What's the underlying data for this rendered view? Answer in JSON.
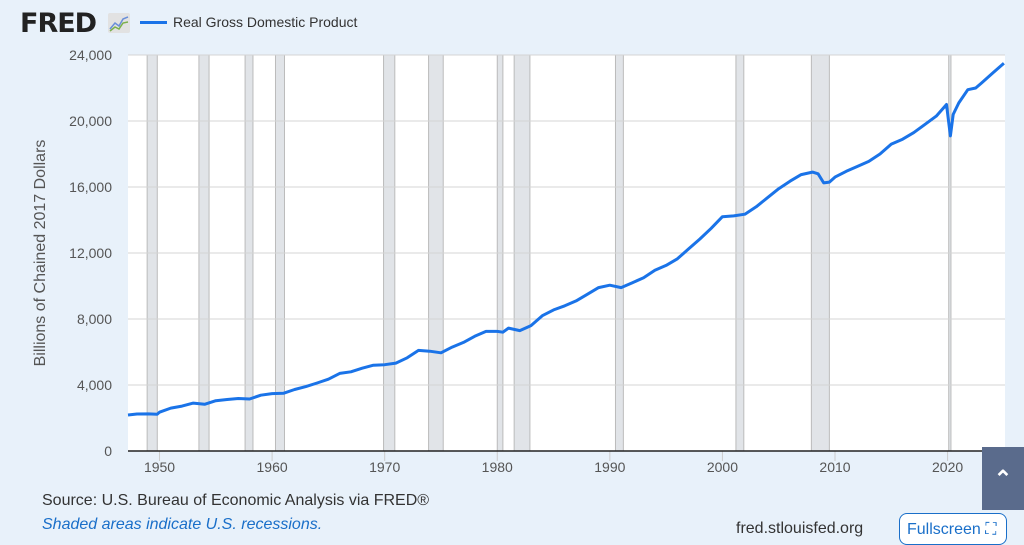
{
  "header": {
    "logo": "FRED",
    "fullscreen_label": "Fullscreen",
    "fullscreen_icon": "⛶"
  },
  "footer": {
    "source": "Source: U.S. Bureau of Economic Analysis via FRED®",
    "note": "Shaded areas indicate U.S. recessions.",
    "url": "fred.stlouisfed.org"
  },
  "colors": {
    "line": "#1a73e8",
    "recession": "#e1e4e8",
    "background": "#e8f1fa"
  },
  "chart_data": {
    "type": "line",
    "title": "",
    "legend": [
      "Real Gross Domestic Product"
    ],
    "legend_placement": "top-left",
    "ylabel": "Billions of Chained 2017 Dollars",
    "xlabel": "",
    "xlim": [
      1947.2,
      2025.1
    ],
    "ylim": [
      0,
      24000
    ],
    "yticks": [
      0,
      4000,
      8000,
      12000,
      16000,
      20000,
      24000
    ],
    "ytick_labels": [
      "0",
      "4,000",
      "8,000",
      "12,000",
      "16,000",
      "20,000",
      "24,000"
    ],
    "xticks": [
      1950,
      1960,
      1970,
      1980,
      1990,
      2000,
      2010,
      2020
    ],
    "xtick_labels": [
      "1950",
      "1960",
      "1970",
      "1980",
      "1990",
      "2000",
      "2010",
      "2020"
    ],
    "grid": true,
    "recessions": [
      [
        1948.9,
        1949.8
      ],
      [
        1953.5,
        1954.4
      ],
      [
        1957.6,
        1958.3
      ],
      [
        1960.3,
        1961.1
      ],
      [
        1969.9,
        1970.9
      ],
      [
        1973.9,
        1975.2
      ],
      [
        1980.0,
        1980.5
      ],
      [
        1981.5,
        1982.9
      ],
      [
        1990.5,
        1991.2
      ],
      [
        2001.2,
        2001.9
      ],
      [
        2007.9,
        2009.5
      ],
      [
        2020.1,
        2020.3
      ]
    ],
    "series": [
      {
        "name": "Real Gross Domestic Product",
        "x": [
          1947.2,
          1948,
          1949,
          1949.8,
          1950,
          1951,
          1952,
          1953,
          1954,
          1955,
          1956,
          1957,
          1958,
          1959,
          1960,
          1961,
          1962,
          1963,
          1964,
          1965,
          1966,
          1967,
          1968,
          1969,
          1970,
          1971,
          1972,
          1973,
          1974,
          1975,
          1976,
          1977,
          1978,
          1979,
          1980,
          1980.5,
          1981,
          1982,
          1983,
          1984,
          1985,
          1986,
          1987,
          1988,
          1989,
          1990,
          1991,
          1992,
          1993,
          1994,
          1995,
          1996,
          1997,
          1998,
          1999,
          2000,
          2001,
          2002,
          2003,
          2004,
          2005,
          2006,
          2007,
          2008,
          2008.5,
          2009,
          2009.5,
          2010,
          2011,
          2012,
          2013,
          2014,
          2015,
          2016,
          2017,
          2018,
          2019,
          2019.9,
          2020.25,
          2020.5,
          2021,
          2021.8,
          2022.5,
          2023,
          2024,
          2025
        ],
        "values": [
          2180,
          2240,
          2250,
          2230,
          2350,
          2600,
          2720,
          2900,
          2830,
          3050,
          3120,
          3180,
          3150,
          3380,
          3480,
          3500,
          3730,
          3900,
          4120,
          4350,
          4700,
          4800,
          5020,
          5200,
          5230,
          5330,
          5650,
          6100,
          6050,
          5950,
          6300,
          6580,
          6950,
          7250,
          7250,
          7200,
          7450,
          7300,
          7600,
          8200,
          8550,
          8800,
          9100,
          9500,
          9900,
          10050,
          9900,
          10200,
          10500,
          10950,
          11250,
          11650,
          12250,
          12850,
          13500,
          14200,
          14250,
          14350,
          14800,
          15350,
          15900,
          16350,
          16750,
          16900,
          16800,
          16250,
          16300,
          16600,
          16950,
          17250,
          17550,
          18000,
          18600,
          18900,
          19300,
          19800,
          20300,
          21000,
          19100,
          20400,
          21100,
          21900,
          22000,
          22300,
          22900,
          23500
        ]
      }
    ]
  }
}
